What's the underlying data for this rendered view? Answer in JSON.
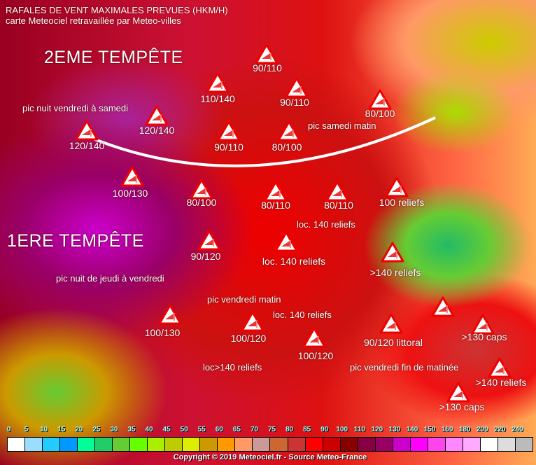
{
  "header": {
    "title": "RAFALES DE VENT MAXIMALES PREVUES (HKM/H)",
    "subtitle": "carte Meteociel retravaillée par Meteo-villes"
  },
  "annotations": {
    "storm2": "2EME TEMPÊTE",
    "storm2_peak": "pic nuit vendredi à samedi",
    "storm2_peak2": "pic samedi matin",
    "storm1": "1ERE TEMPÊTE",
    "storm1_peak": "pic nuit de jeudi à vendredi",
    "storm1_peak2": "pic vendredi matin",
    "loc1": "loc. 140 reliefs",
    "loc2": "loc. 140 reliefs",
    "loc3": "loc>140 reliefs",
    "storm1_peak3": "pic vendredi fin de matinée"
  },
  "markers": [
    {
      "label": "90/110"
    },
    {
      "label": "110/140"
    },
    {
      "label": "90/110"
    },
    {
      "label": "80/100"
    },
    {
      "label": "120/140"
    },
    {
      "label": "120/140"
    },
    {
      "label": "90/110"
    },
    {
      "label": "80/100"
    },
    {
      "label": "100/130"
    },
    {
      "label": "80/100"
    },
    {
      "label": "80/110"
    },
    {
      "label": "80/110"
    },
    {
      "label": "100 reliefs"
    },
    {
      "label": "90/120"
    },
    {
      "label": "loc. 140 reliefs"
    },
    {
      "label": ">140 reliefs"
    },
    {
      "label": "100/130"
    },
    {
      "label": "100/120"
    },
    {
      "label": "100/120"
    },
    {
      "label": "90/120 littoral"
    },
    {
      "label": ""
    },
    {
      "label": ">130 caps"
    },
    {
      "label": ">140 reliefs"
    },
    {
      "label": ">130 caps"
    }
  ],
  "marker_icon": "wind-warning-triangle-icon",
  "legend": {
    "unit": "km/h",
    "ticks": [
      "0",
      "5",
      "10",
      "15",
      "20",
      "25",
      "30",
      "35",
      "40",
      "45",
      "50",
      "55",
      "60",
      "65",
      "70",
      "75",
      "80",
      "85",
      "90",
      "100",
      "110",
      "120",
      "130",
      "140",
      "150",
      "160",
      "180",
      "200",
      "220",
      "240"
    ],
    "colors": [
      "#ffffff",
      "#99ddff",
      "#22ccff",
      "#0099ff",
      "#00ff99",
      "#22cc66",
      "#66cc33",
      "#66ff00",
      "#aaee00",
      "#bbcc00",
      "#ddee00",
      "#cc9900",
      "#ff9900",
      "#ff9966",
      "#cc9999",
      "#cc6633",
      "#cc3333",
      "#ff0000",
      "#cc0000",
      "#880000",
      "#880044",
      "#990066",
      "#cc00cc",
      "#ff00ff",
      "#ff44ee",
      "#ff88ff",
      "#ffaaff",
      "#ffffff",
      "#dddddd",
      "#bbbbbb"
    ],
    "copyright": "Copyright © 2019 Meteociel.fr - Source Meteo-France"
  }
}
